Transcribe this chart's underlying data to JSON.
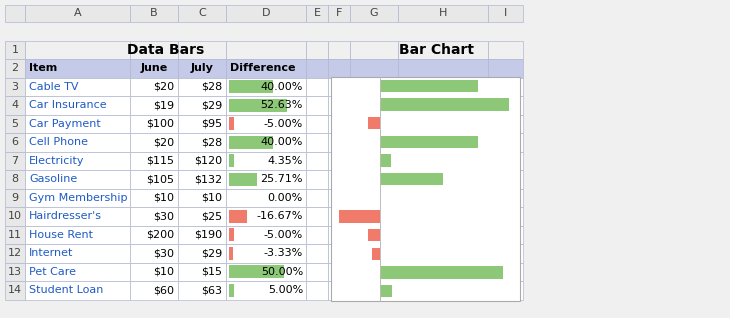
{
  "items": [
    "Cable TV",
    "Car Insurance",
    "Car Payment",
    "Cell Phone",
    "Electricity",
    "Gasoline",
    "Gym Membership",
    "Hairdresser's",
    "House Rent",
    "Internet",
    "Pet Care",
    "Student Loan"
  ],
  "june": [
    20,
    19,
    100,
    20,
    115,
    105,
    10,
    30,
    200,
    30,
    10,
    60
  ],
  "july": [
    28,
    29,
    95,
    28,
    120,
    132,
    10,
    25,
    190,
    29,
    15,
    63
  ],
  "difference": [
    40.0,
    52.63,
    -5.0,
    40.0,
    4.35,
    25.71,
    0.0,
    -16.67,
    -5.0,
    -3.33,
    50.0,
    5.0
  ],
  "diff_labels": [
    "40.00%",
    "52.63%",
    "-5.00%",
    "40.00%",
    "4.35%",
    "25.71%",
    "0.00%",
    "-16.67%",
    "-5.00%",
    "-3.33%",
    "50.00%",
    "5.00%"
  ],
  "color_positive": "#8DC878",
  "color_negative": "#F07B6A",
  "header_col_bg": "#E8E8E8",
  "table_header_bg": "#C5CAE9",
  "table_row_bg": "#FFFFFF",
  "table_item_color": "#1F5BC4",
  "table_border_color": "#B0B8D0",
  "col_letter_color": "#444444",
  "row_num_color": "#444444",
  "title_left": "Data Bars",
  "title_right": "Bar Chart",
  "col_headers": [
    "Item",
    "June",
    "July",
    "Difference"
  ],
  "excel_cols": [
    "",
    "A",
    "B",
    "C",
    "D",
    "E",
    "F",
    "G",
    "H",
    "I"
  ],
  "fig_bg": "#F0F0F0",
  "chart_bg": "#FFFFFF",
  "chart_border": "#AAAAAA",
  "title_fontsize": 10,
  "header_fontsize": 8,
  "table_fontsize": 8,
  "bar_chart_xlim": [
    -20,
    57
  ]
}
